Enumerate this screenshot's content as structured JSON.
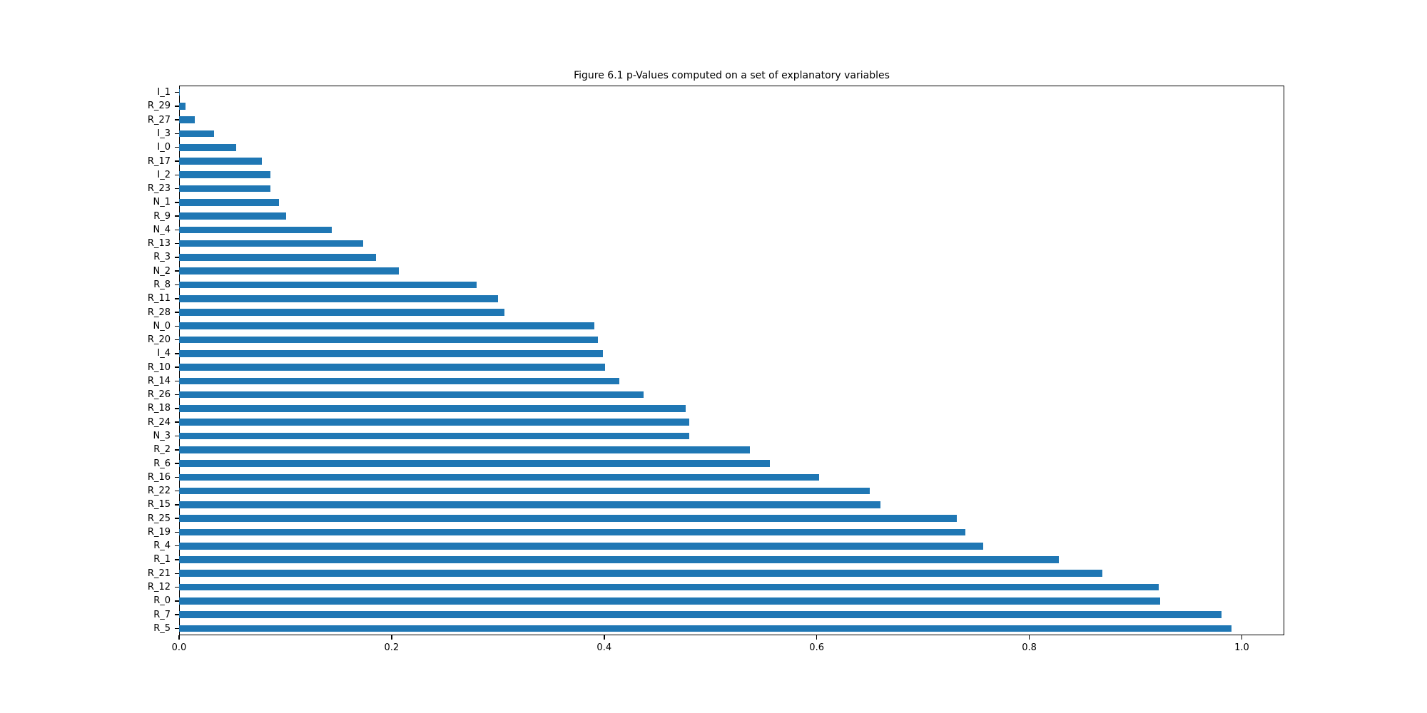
{
  "chart_data": {
    "type": "bar",
    "orientation": "horizontal",
    "title": "Figure 6.1 p-Values computed on a set of explanatory variables",
    "xlabel": "",
    "ylabel": "",
    "grid": false,
    "legend": null,
    "bar_color": "#1f77b4",
    "axis_color": "#000000",
    "xlim": [
      0.0,
      1.04
    ],
    "xticks": [
      0.0,
      0.2,
      0.4,
      0.6,
      0.8,
      1.0
    ],
    "xtick_labels": [
      "0.0",
      "0.2",
      "0.4",
      "0.6",
      "0.8",
      "1.0"
    ],
    "categories": [
      "I_1",
      "R_29",
      "R_27",
      "I_3",
      "I_0",
      "R_17",
      "I_2",
      "R_23",
      "N_1",
      "R_9",
      "N_4",
      "R_13",
      "R_3",
      "N_2",
      "R_8",
      "R_11",
      "R_28",
      "N_0",
      "R_20",
      "I_4",
      "R_10",
      "R_14",
      "R_26",
      "R_18",
      "R_24",
      "N_3",
      "R_2",
      "R_6",
      "R_16",
      "R_22",
      "R_15",
      "R_25",
      "R_19",
      "R_4",
      "R_1",
      "R_21",
      "R_12",
      "R_0",
      "R_7",
      "R_5"
    ],
    "values": [
      0.001,
      0.006,
      0.015,
      0.033,
      0.054,
      0.078,
      0.086,
      0.086,
      0.094,
      0.101,
      0.144,
      0.173,
      0.185,
      0.207,
      0.28,
      0.3,
      0.306,
      0.391,
      0.394,
      0.399,
      0.401,
      0.414,
      0.437,
      0.477,
      0.48,
      0.48,
      0.537,
      0.556,
      0.602,
      0.65,
      0.66,
      0.732,
      0.74,
      0.757,
      0.828,
      0.869,
      0.922,
      0.923,
      0.981,
      0.99
    ]
  }
}
